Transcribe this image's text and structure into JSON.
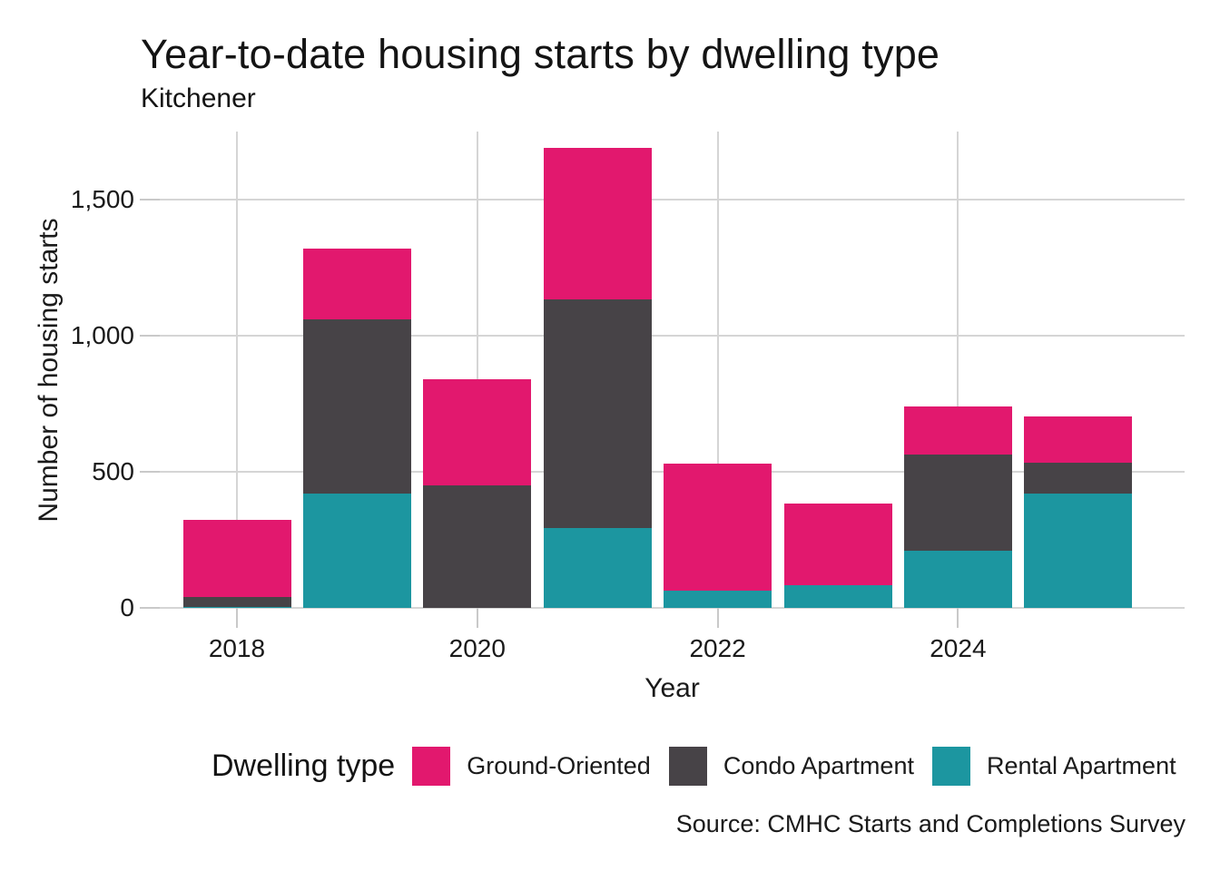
{
  "source": "Source: CMHC Starts and Completions Survey",
  "chart_data": {
    "type": "bar",
    "stacked": true,
    "title": "Year-to-date housing starts by dwelling type",
    "subtitle": "Kitchener",
    "xlabel": "Year",
    "ylabel": "Number of housing starts",
    "categories": [
      2018,
      2019,
      2020,
      2021,
      2022,
      2023,
      2024,
      2025
    ],
    "series": [
      {
        "name": "Ground-Oriented",
        "color": "#E2186E",
        "values": [
          285,
          260,
          390,
          555,
          465,
          300,
          175,
          170
        ]
      },
      {
        "name": "Condo Apartment",
        "color": "#474347",
        "values": [
          35,
          640,
          450,
          840,
          0,
          0,
          355,
          115
        ]
      },
      {
        "name": "Rental Apartment",
        "color": "#1C96A0",
        "values": [
          5,
          420,
          0,
          295,
          65,
          85,
          210,
          420
        ]
      }
    ],
    "stack_order_bottom_to_top": [
      "Rental Apartment",
      "Condo Apartment",
      "Ground-Oriented"
    ],
    "totals": [
      325,
      1320,
      840,
      1690,
      530,
      385,
      740,
      705
    ],
    "ylim": [
      0,
      1750
    ],
    "yticks": [
      0,
      500,
      1000,
      1500
    ],
    "ytick_labels": [
      "0",
      "500",
      "1,000",
      "1,500"
    ],
    "xticks": [
      2018,
      2020,
      2022,
      2024
    ],
    "grid": "major",
    "legend_title": "Dwelling type",
    "legend_position": "bottom",
    "background": "#FFFFFF",
    "gridline_color": "#D5D5D5",
    "text_color": "#1A1A1A"
  }
}
